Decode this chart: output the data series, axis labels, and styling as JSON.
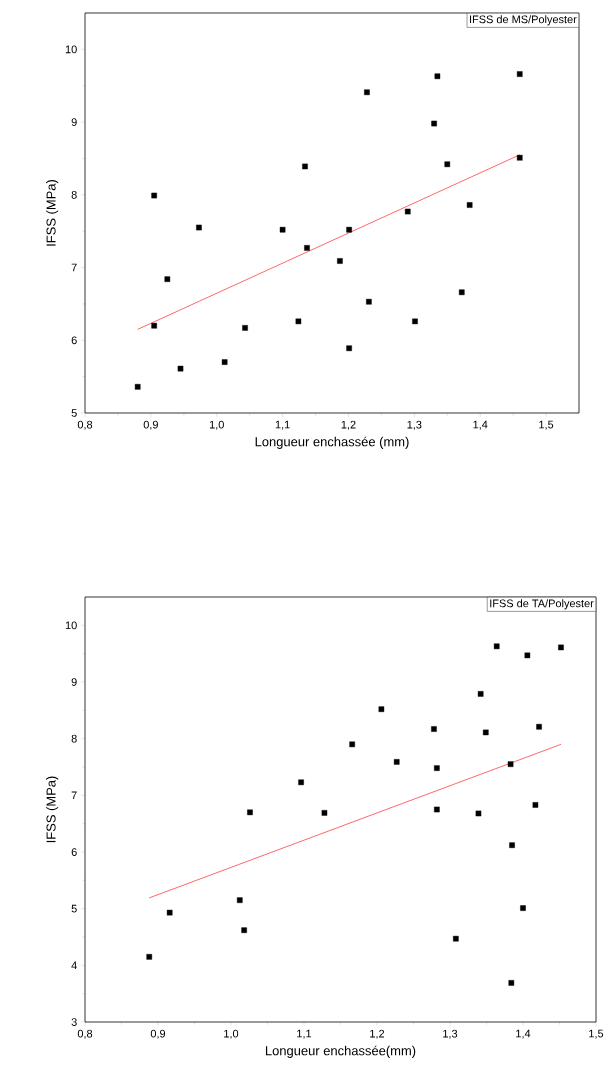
{
  "chart_data": [
    {
      "type": "scatter",
      "xlabel": "Longueur enchassée (mm)",
      "ylabel": "IFSS (MPa)",
      "annotations": [
        "IFSS de MS/Polyester"
      ],
      "xlim": [
        0.8,
        1.55
      ],
      "ylim": [
        5,
        10.5
      ],
      "xticks": [
        {
          "value": 0.8,
          "label": "0,8"
        },
        {
          "value": 0.9,
          "label": "0,9"
        },
        {
          "value": 1.0,
          "label": "1,0"
        },
        {
          "value": 1.1,
          "label": "1,1"
        },
        {
          "value": 1.2,
          "label": "1,2"
        },
        {
          "value": 1.3,
          "label": "1,3"
        },
        {
          "value": 1.4,
          "label": "1,4"
        },
        {
          "value": 1.5,
          "label": "1,5"
        }
      ],
      "yticks": [
        5,
        6,
        7,
        8,
        9,
        10
      ],
      "series": [
        {
          "marker": "square",
          "color": "#000000",
          "x": [
            0.88,
            0.905,
            0.905,
            0.925,
            0.945,
            0.973,
            1.012,
            1.043,
            1.1,
            1.124,
            1.134,
            1.137,
            1.187,
            1.201,
            1.201,
            1.228,
            1.231,
            1.29,
            1.301,
            1.33,
            1.335,
            1.35,
            1.372,
            1.384,
            1.46,
            1.46
          ],
          "values": [
            5.36,
            7.99,
            6.2,
            6.84,
            5.61,
            7.55,
            5.7,
            6.17,
            7.52,
            6.26,
            8.39,
            7.27,
            7.09,
            7.52,
            5.89,
            9.41,
            6.53,
            7.77,
            6.26,
            8.98,
            9.63,
            8.42,
            6.66,
            7.86,
            9.66,
            8.51
          ]
        },
        {
          "type": "line",
          "color": "#ff0000",
          "x": [
            0.88,
            1.46
          ],
          "values": [
            6.15,
            8.55
          ]
        }
      ]
    },
    {
      "type": "scatter",
      "xlabel": "Longueur enchassée(mm)",
      "ylabel": "IFSS (MPa)",
      "annotations": [
        "IFSS de TA/Polyester"
      ],
      "xlim": [
        0.8,
        1.5
      ],
      "ylim": [
        3,
        10.5
      ],
      "xticks": [
        {
          "value": 0.8,
          "label": "0,8"
        },
        {
          "value": 0.9,
          "label": "0,9"
        },
        {
          "value": 1.0,
          "label": "1,0"
        },
        {
          "value": 1.1,
          "label": "1,1"
        },
        {
          "value": 1.2,
          "label": "1,2"
        },
        {
          "value": 1.3,
          "label": "1,3"
        },
        {
          "value": 1.4,
          "label": "1,4"
        },
        {
          "value": 1.5,
          "label": "1,5"
        }
      ],
      "yticks": [
        3,
        4,
        5,
        6,
        7,
        8,
        9,
        10
      ],
      "series": [
        {
          "marker": "square",
          "color": "#000000",
          "x": [
            0.888,
            0.916,
            1.012,
            1.018,
            1.026,
            1.096,
            1.128,
            1.166,
            1.206,
            1.227,
            1.278,
            1.282,
            1.282,
            1.308,
            1.339,
            1.342,
            1.349,
            1.364,
            1.383,
            1.385,
            1.384,
            1.4,
            1.406,
            1.417,
            1.422,
            1.452
          ],
          "values": [
            4.15,
            4.93,
            5.15,
            4.62,
            6.7,
            7.23,
            6.69,
            7.9,
            8.52,
            7.59,
            8.17,
            7.48,
            6.75,
            4.47,
            6.68,
            8.79,
            8.11,
            9.63,
            7.55,
            6.12,
            3.69,
            5.01,
            9.47,
            6.83,
            8.21,
            9.61
          ]
        },
        {
          "type": "line",
          "color": "#ff0000",
          "x": [
            0.888,
            1.452
          ],
          "values": [
            5.19,
            7.9
          ]
        }
      ]
    }
  ]
}
